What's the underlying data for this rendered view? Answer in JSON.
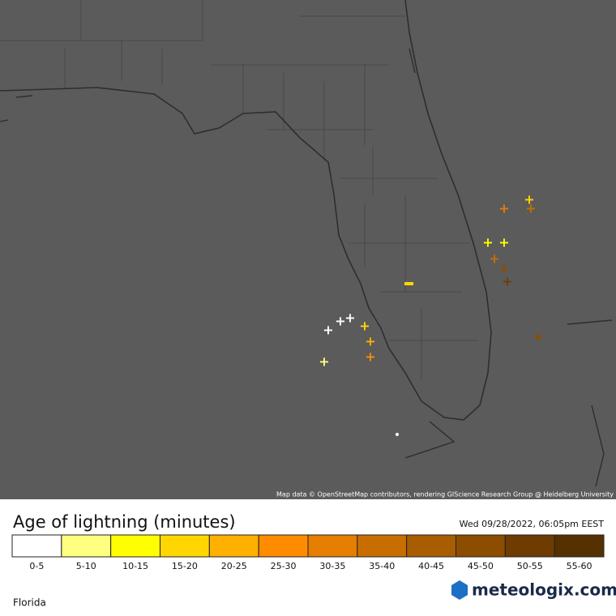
{
  "map": {
    "attribution": "Map data © OpenStreetMap contributors, rendering GIScience Research Group @ Heidelberg University"
  },
  "legend": {
    "title": "Age of lightning (minutes)",
    "timestamp": "Wed 09/28/2022, 06:05pm EEST",
    "items": [
      {
        "label": "0-5",
        "color": "#ffffff"
      },
      {
        "label": "5-10",
        "color": "#ffff80"
      },
      {
        "label": "10-15",
        "color": "#ffff00"
      },
      {
        "label": "15-20",
        "color": "#ffd700"
      },
      {
        "label": "20-25",
        "color": "#ffb000"
      },
      {
        "label": "25-30",
        "color": "#ff8c00"
      },
      {
        "label": "30-35",
        "color": "#e67e00"
      },
      {
        "label": "35-40",
        "color": "#c86e00"
      },
      {
        "label": "40-45",
        "color": "#a85d00"
      },
      {
        "label": "45-50",
        "color": "#8c4d00"
      },
      {
        "label": "50-55",
        "color": "#6e3c00"
      },
      {
        "label": "55-60",
        "color": "#553000"
      }
    ]
  },
  "region": "Florida",
  "brand": "meteologix.com"
}
